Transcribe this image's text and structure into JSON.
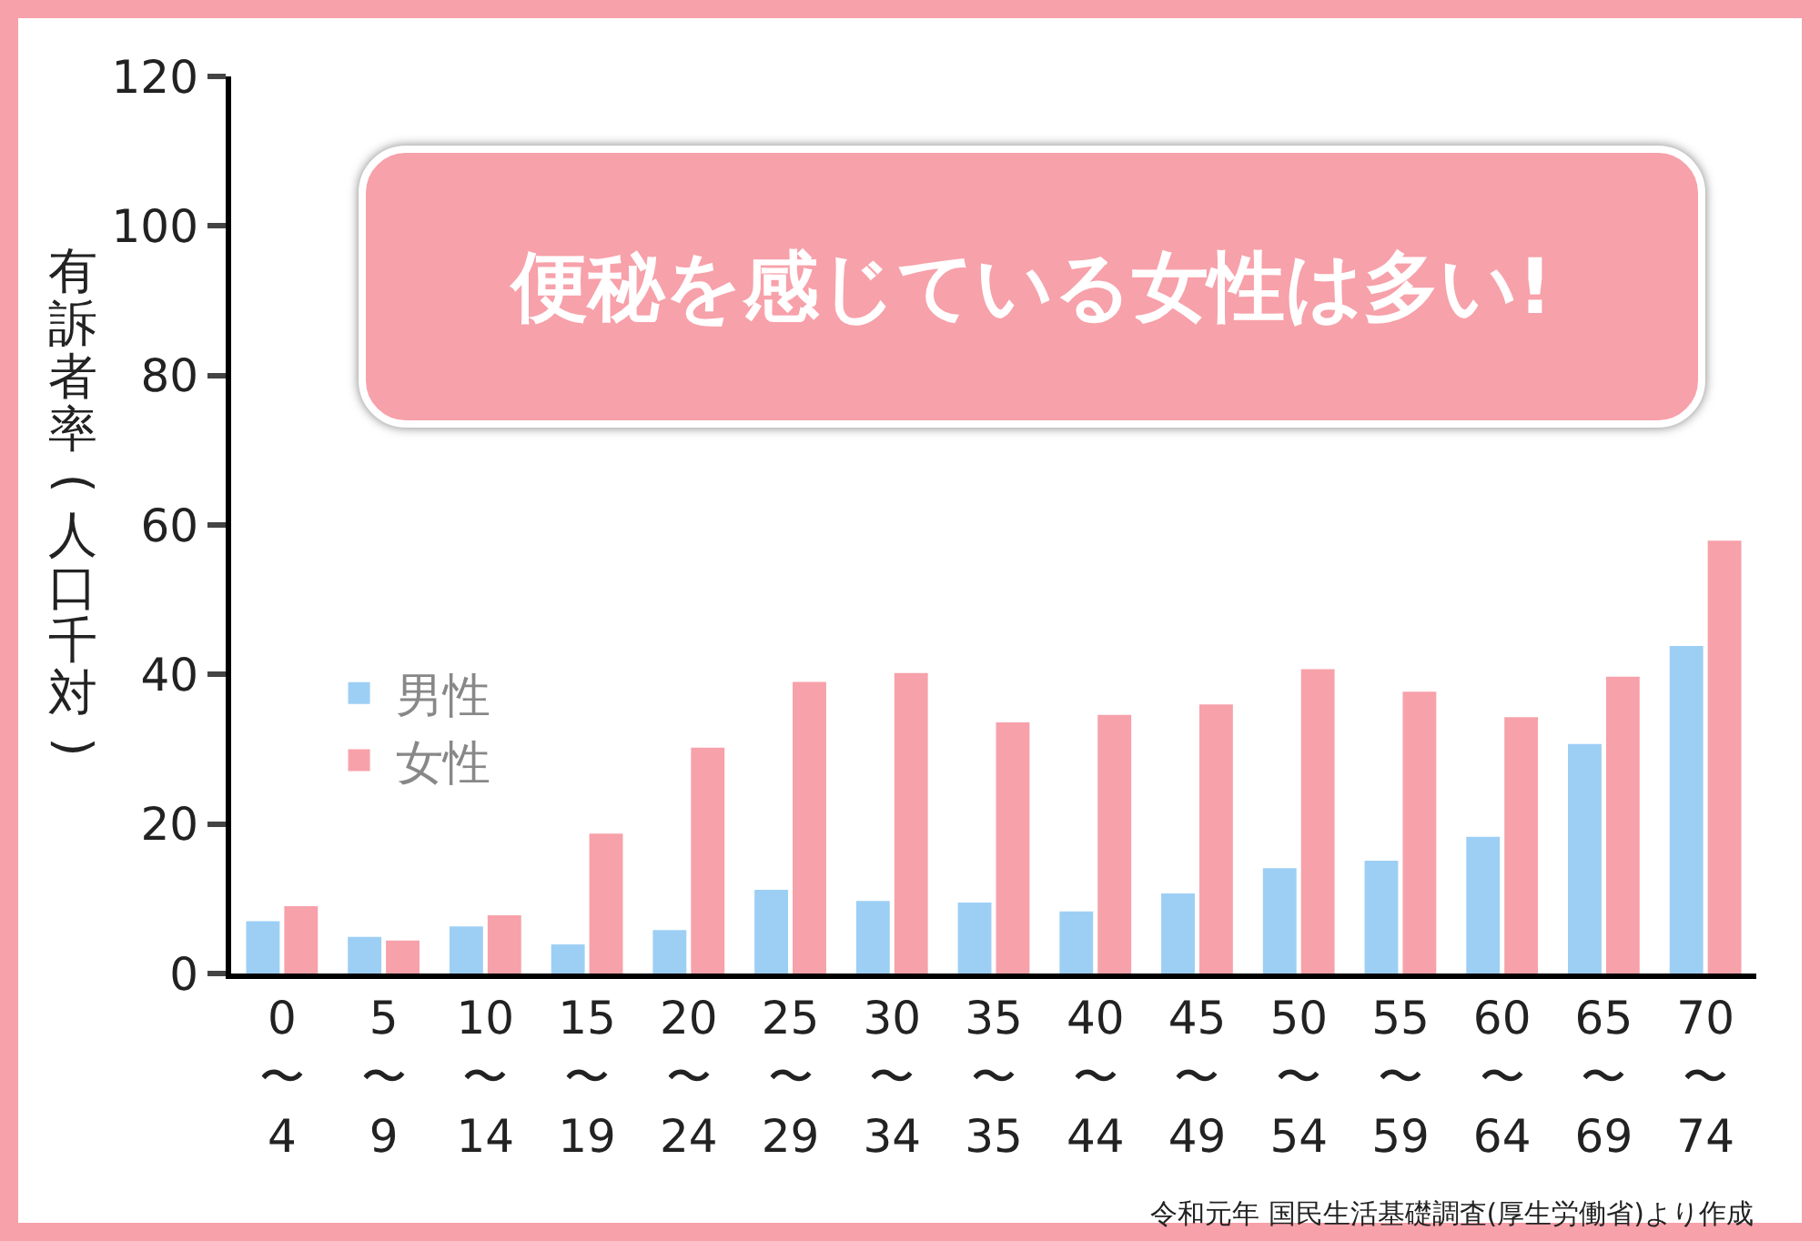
{
  "chart_data": {
    "type": "bar",
    "title": "便秘を感じている女性は多い!",
    "ylabel": "有訴者率(人口千対)",
    "categories": [
      "0\n〜\n4",
      "5\n〜\n9",
      "10\n〜\n14",
      "15\n〜\n19",
      "20\n〜\n24",
      "25\n〜\n29",
      "30\n〜\n34",
      "35\n〜\n35",
      "40\n〜\n44",
      "45\n〜\n49",
      "50\n〜\n54",
      "55\n〜\n59",
      "60\n〜\n64",
      "65\n〜\n69",
      "70\n〜\n74"
    ],
    "series": [
      {
        "name": "男性",
        "color": "#9dcff5",
        "values": [
          7.0,
          4.9,
          6.3,
          3.9,
          5.8,
          11.2,
          9.7,
          9.5,
          8.3,
          10.7,
          14.1,
          15.1,
          18.3,
          30.7,
          43.8
        ]
      },
      {
        "name": "女性",
        "color": "#f7a1aa",
        "values": [
          9.0,
          4.4,
          7.8,
          18.7,
          30.2,
          39.0,
          40.2,
          33.6,
          34.6,
          36.0,
          40.7,
          37.7,
          34.3,
          39.7,
          57.9
        ]
      }
    ],
    "ylim": [
      0,
      120
    ],
    "yticks": [
      0,
      20,
      40,
      60,
      80,
      100,
      120
    ],
    "grid": false,
    "legend": "left",
    "annotations": [
      "令和元年 国民生活基礎調査(厚生労働省)より作成"
    ]
  }
}
